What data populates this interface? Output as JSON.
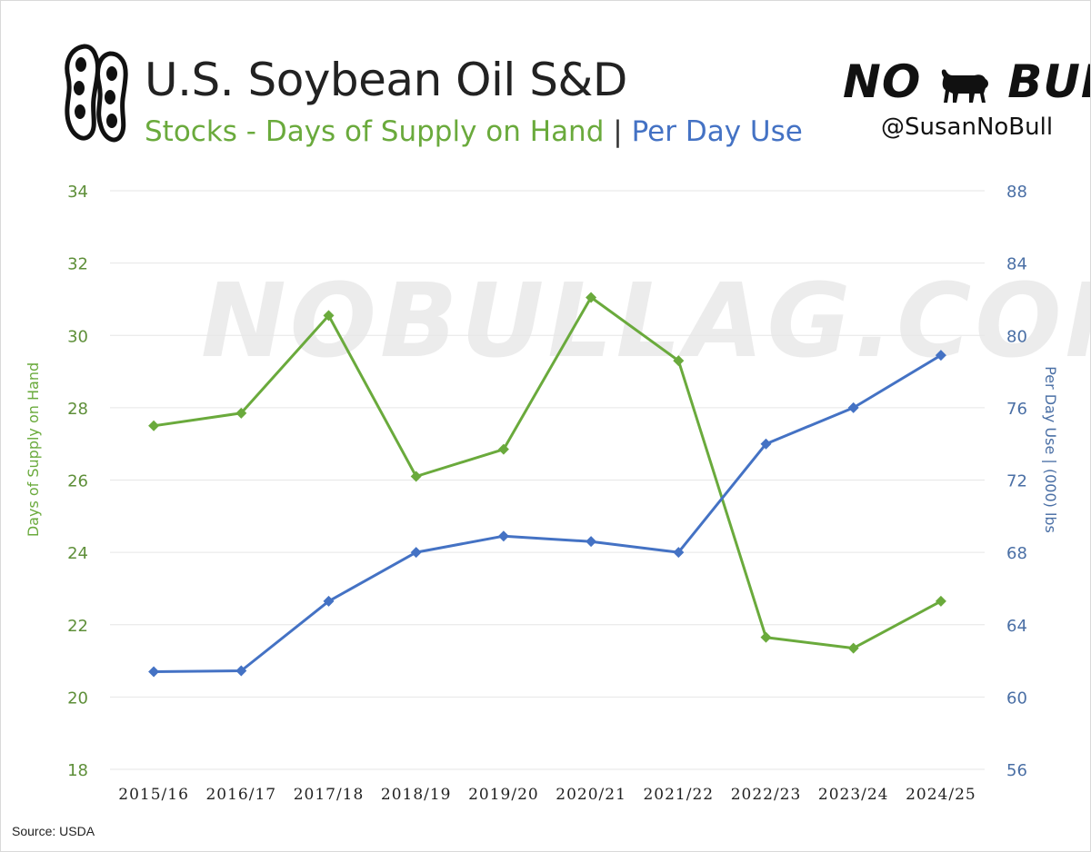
{
  "header": {
    "title": "U.S. Soybean Oil S&D",
    "subtitle_green": "Stocks - Days of Supply on Hand",
    "subtitle_separator": "|",
    "subtitle_blue": "Per Day Use"
  },
  "brand": {
    "logo_text_left": "NO",
    "logo_text_right": "BULL",
    "handle": "@SusanNoBull",
    "watermark": "NOBULLAG.COM",
    "logo_icon": "soybean-pod-icon",
    "bull_icon": "bull-icon"
  },
  "source": "Source: USDA",
  "colors": {
    "green": "#6aaa3c",
    "blue": "#4472c4",
    "grid": "#e6e6e6"
  },
  "chart_data": {
    "type": "line",
    "categories": [
      "2015/16",
      "2016/17",
      "2017/18",
      "2018/19",
      "2019/20",
      "2020/21",
      "2021/22",
      "2022/23",
      "2023/24",
      "2024/25"
    ],
    "y_left": {
      "label": "Days of Supply on Hand",
      "ylim": [
        18,
        34
      ],
      "ticks": [
        "18",
        "20",
        "22",
        "24",
        "26",
        "28",
        "30",
        "32",
        "34"
      ]
    },
    "y_right": {
      "label": "Per Day Use | (000) lbs",
      "ylim": [
        56,
        88
      ],
      "ticks": [
        "56",
        "60",
        "64",
        "68",
        "72",
        "76",
        "80",
        "84",
        "88"
      ]
    },
    "series": [
      {
        "axis": "left",
        "color": "#6aaa3c",
        "marker": "diamond",
        "values": [
          27.5,
          27.85,
          30.55,
          26.1,
          26.85,
          31.05,
          29.3,
          21.65,
          21.35,
          22.65
        ]
      },
      {
        "axis": "right",
        "color": "#4472c4",
        "marker": "diamond",
        "values": [
          61.4,
          61.45,
          65.3,
          68.0,
          68.9,
          68.6,
          68.0,
          74.0,
          76.0,
          78.9
        ]
      }
    ],
    "grid": true,
    "legend": "none"
  }
}
